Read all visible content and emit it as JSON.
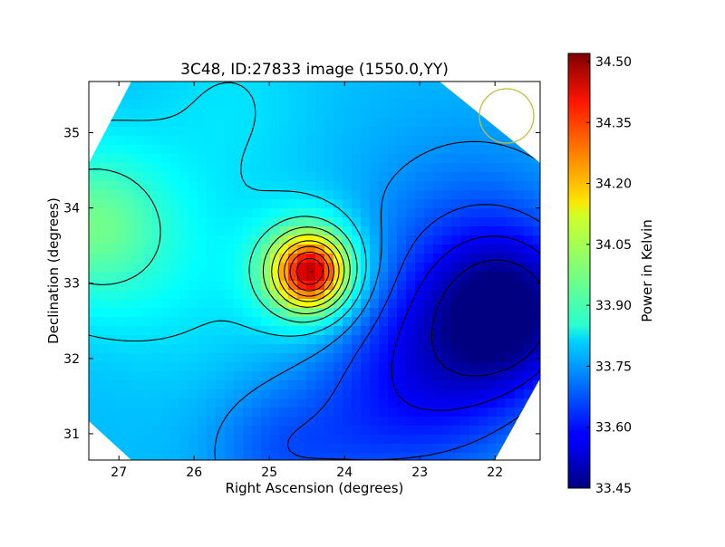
{
  "chart_data": {
    "type": "heatmap",
    "title": "3C48, ID:27833 image (1550.0,YY)",
    "xlabel": "Right Ascension (degrees)",
    "ylabel": "Declination (degrees)",
    "xlim": [
      27.4,
      21.4
    ],
    "ylim": [
      30.65,
      35.68
    ],
    "x_ticks": [
      27,
      26,
      25,
      24,
      23,
      22
    ],
    "y_ticks": [
      31,
      32,
      33,
      34,
      35
    ],
    "colorbar": {
      "label": "Power in Kelvin",
      "range": [
        33.45,
        34.52
      ],
      "ticks": [
        "34.50",
        "34.35",
        "34.20",
        "34.05",
        "33.90",
        "33.75",
        "33.60",
        "33.45"
      ],
      "colormap": "jet"
    },
    "peak": {
      "ra": 24.45,
      "dec": 33.15,
      "value": 34.5
    },
    "features": [
      {
        "ra": 27.3,
        "dec": 33.8,
        "value": 34.0
      },
      {
        "ra": 21.9,
        "dec": 32.6,
        "value": 33.47
      },
      {
        "ra": 25.5,
        "dec": 35.3,
        "value": 33.82
      }
    ],
    "grid": false,
    "beam_marker": {
      "ra": 21.85,
      "dec": 35.22,
      "color": "#bfbf3f"
    }
  }
}
